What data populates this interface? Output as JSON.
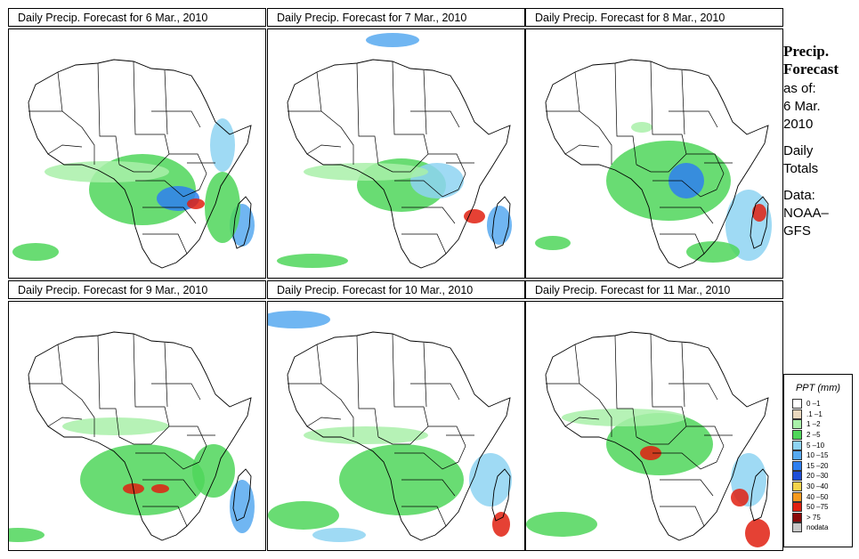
{
  "panels": [
    {
      "title": "Daily Precip. Forecast for  6 Mar., 2010"
    },
    {
      "title": "Daily Precip. Forecast for  7 Mar., 2010"
    },
    {
      "title": "Daily Precip. Forecast for  8 Mar., 2010"
    },
    {
      "title": "Daily Precip. Forecast for  9 Mar., 2010"
    },
    {
      "title": "Daily Precip. Forecast for  10 Mar., 2010"
    },
    {
      "title": "Daily Precip. Forecast for  11 Mar., 2010"
    }
  ],
  "sidebar": {
    "title1": "Precip.",
    "title2": "Forecast",
    "asof": "as of:",
    "date1": "6 Mar.",
    "date2": "2010",
    "daily": "Daily",
    "totals": "Totals",
    "data": "Data:",
    "source1": "NOAA–",
    "source2": "GFS"
  },
  "legend": {
    "title": "PPT (mm)",
    "items": [
      {
        "label": "0 –1",
        "color": "#ffffff"
      },
      {
        "label": ".1 –1",
        "color": "#ead8be"
      },
      {
        "label": "1 –2",
        "color": "#a9f0a9"
      },
      {
        "label": "2 –5",
        "color": "#4fd65a"
      },
      {
        "label": "5 –10",
        "color": "#8ed3f2"
      },
      {
        "label": "10 –15",
        "color": "#57a9f0"
      },
      {
        "label": "15 –20",
        "color": "#2f7ff0"
      },
      {
        "label": "20 –30",
        "color": "#1f4fd8"
      },
      {
        "label": "30 –40",
        "color": "#f5d34a"
      },
      {
        "label": "40 –50",
        "color": "#f59a1f"
      },
      {
        "label": "50 –75",
        "color": "#e02010"
      },
      {
        "label": "> 75",
        "color": "#8a0a0a"
      },
      {
        "label": "nodata",
        "color": "#c8c8c8"
      }
    ]
  }
}
